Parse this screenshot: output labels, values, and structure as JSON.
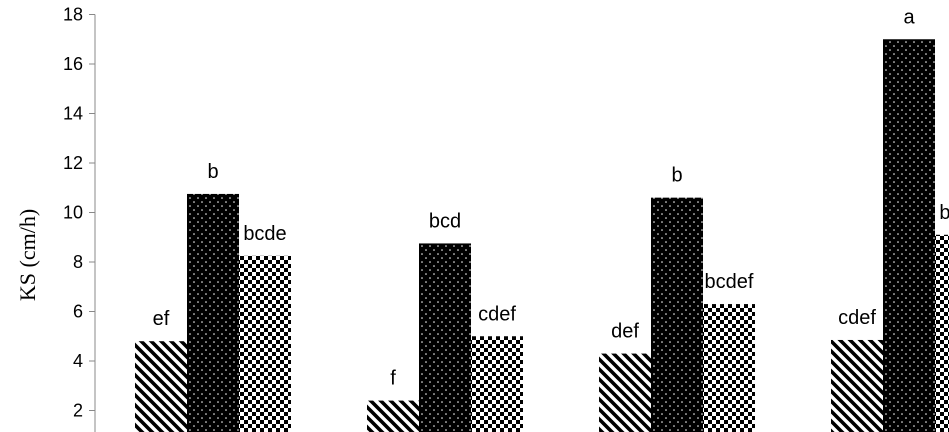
{
  "chart_data": {
    "type": "bar",
    "title": "",
    "xlabel": "",
    "ylabel": "KS (cm/h)",
    "ylim": [
      0,
      18
    ],
    "yticks": [
      2,
      4,
      6,
      8,
      10,
      12,
      14,
      16,
      18
    ],
    "grid": false,
    "legend": "none",
    "groups": [
      {
        "values": [
          4.8,
          10.75,
          8.25
        ],
        "labels": [
          "ef",
          "b",
          "bcde"
        ]
      },
      {
        "values": [
          2.4,
          8.75,
          5.0
        ],
        "labels": [
          "f",
          "bcd",
          "cdef"
        ]
      },
      {
        "values": [
          4.3,
          10.6,
          6.3
        ],
        "labels": [
          "def",
          "b",
          "bcdef"
        ]
      },
      {
        "values": [
          4.85,
          17.0,
          9.1
        ],
        "labels": [
          "cdef",
          "a",
          "bcde"
        ]
      }
    ],
    "series_patterns": [
      "diagonal-stripes",
      "dotted-black",
      "checkerboard"
    ]
  }
}
